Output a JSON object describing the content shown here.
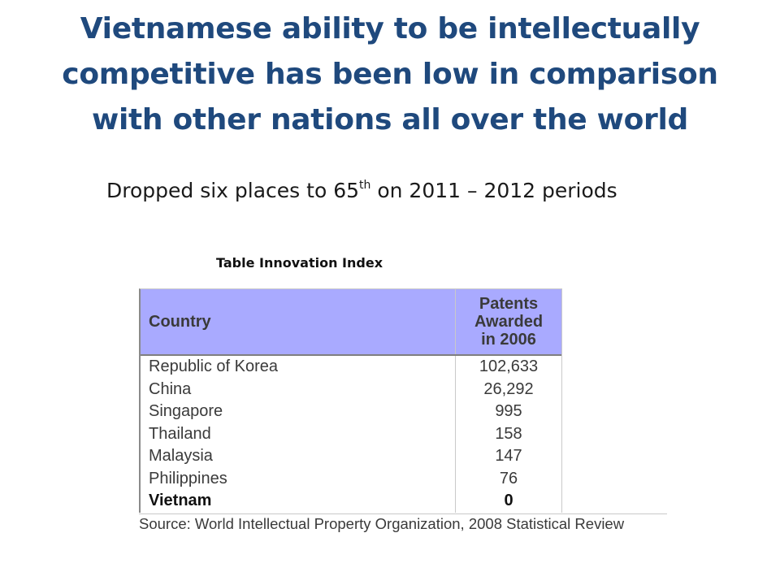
{
  "slide": {
    "title": "Vietnamese ability to be intellectually competitive has been low in comparison with other nations all over the world",
    "bullet": {
      "text_before": "Dropped six places to 65",
      "superscript": "th",
      "text_after": " on 2011 – 2012 periods"
    },
    "table_caption": "Table Innovation Index"
  },
  "table": {
    "headers": {
      "country": "Country",
      "patents_line1": "Patents",
      "patents_line2": "Awarded",
      "patents_line3": "in 2006"
    },
    "rows": [
      {
        "country": "Republic of Korea",
        "value": "102,633"
      },
      {
        "country": "China",
        "value": "26,292"
      },
      {
        "country": "Singapore",
        "value": "995"
      },
      {
        "country": "Thailand",
        "value": "158"
      },
      {
        "country": "Malaysia",
        "value": "147"
      },
      {
        "country": "Philippines",
        "value": "76"
      },
      {
        "country": "Vietnam",
        "value": "0"
      }
    ],
    "source": "Source: World Intellectual Property Organization, 2008 Statistical Review",
    "colors": {
      "header_bg": "#a9aaff",
      "title": "#1f497d"
    }
  }
}
